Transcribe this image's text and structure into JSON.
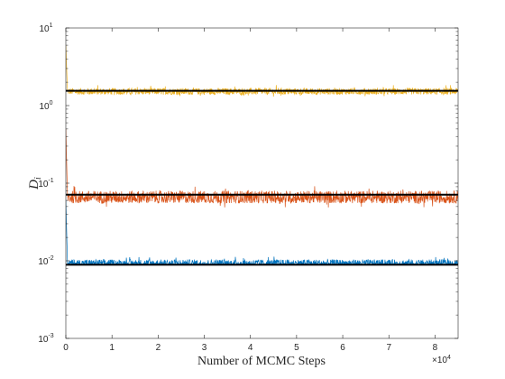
{
  "chart_data": {
    "type": "line",
    "title": "",
    "xlabel": "Number of MCMC Steps",
    "ylabel": "D",
    "ylabel_subscript": "i",
    "x_multiplier_label": "×10",
    "x_multiplier_exponent": "4",
    "xlim": [
      0,
      85000
    ],
    "ylim": [
      0.001,
      10
    ],
    "y_scale": "log",
    "grid": false,
    "legend": "none",
    "x_ticks": [
      {
        "value": 0,
        "label": "0"
      },
      {
        "value": 10000,
        "label": "1"
      },
      {
        "value": 20000,
        "label": "2"
      },
      {
        "value": 30000,
        "label": "3"
      },
      {
        "value": 40000,
        "label": "4"
      },
      {
        "value": 50000,
        "label": "5"
      },
      {
        "value": 60000,
        "label": "6"
      },
      {
        "value": 70000,
        "label": "7"
      },
      {
        "value": 80000,
        "label": "8"
      }
    ],
    "y_ticks": [
      {
        "value": 0.001,
        "base": "10",
        "exp": "-3"
      },
      {
        "value": 0.01,
        "base": "10",
        "exp": "-2"
      },
      {
        "value": 0.1,
        "base": "10",
        "exp": "-1"
      },
      {
        "value": 1,
        "base": "10",
        "exp": "0"
      },
      {
        "value": 10,
        "base": "10",
        "exp": "1"
      }
    ],
    "series": [
      {
        "color": "#EDB120",
        "start_value": 6.0,
        "mean": 1.5,
        "min": 1.3,
        "max": 1.85
      },
      {
        "color": "#D95319",
        "start_value": 0.5,
        "mean": 0.065,
        "min": 0.048,
        "max": 0.095
      },
      {
        "color": "#0072BD",
        "start_value": 0.06,
        "mean": 0.0092,
        "min": 0.0088,
        "max": 0.0115
      }
    ],
    "reference_lines": [
      {
        "color": "#000000",
        "value": 1.55
      },
      {
        "color": "#000000",
        "value": 0.071
      },
      {
        "color": "#000000",
        "value": 0.0089
      }
    ]
  }
}
